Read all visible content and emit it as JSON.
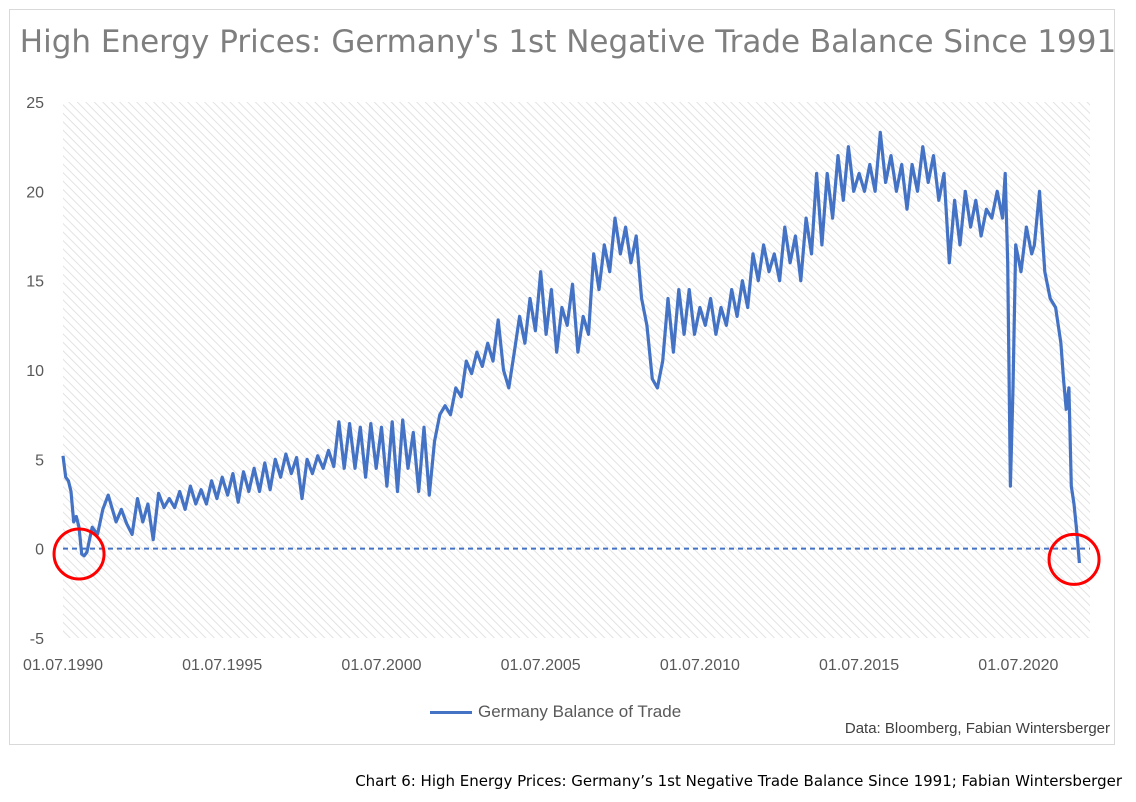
{
  "chart_data": {
    "type": "line",
    "title": "High Energy Prices: Germany's 1st Negative Trade Balance Since 1991",
    "xlabel": "",
    "ylabel": "",
    "xlim": [
      "1990-07-01",
      "2022-10-01"
    ],
    "ylim": [
      -5,
      25
    ],
    "y_ticks": [
      "25",
      "20",
      "15",
      "10",
      "5",
      "0",
      "-5"
    ],
    "x_tick_labels": [
      "01.07.1990",
      "01.07.1995",
      "01.07.2000",
      "01.07.2005",
      "01.07.2010",
      "01.07.2015",
      "01.07.2020"
    ],
    "grid": "hatched background",
    "legend_position": "bottom",
    "reference_line": {
      "y": 0,
      "style": "dashed"
    },
    "highlight_circles": [
      {
        "x": "1991-01-01",
        "y": -0.3
      },
      {
        "x": "2022-04-01",
        "y": -0.6
      }
    ],
    "series": [
      {
        "name": "Germany Balance of Trade",
        "color": "#4472c4",
        "points": [
          [
            "1990-07-01",
            5.2
          ],
          [
            "1990-08-01",
            4.0
          ],
          [
            "1990-09-01",
            3.8
          ],
          [
            "1990-10-01",
            3.2
          ],
          [
            "1990-11-01",
            1.5
          ],
          [
            "1990-12-01",
            1.8
          ],
          [
            "1991-01-01",
            1.2
          ],
          [
            "1991-02-01",
            -0.3
          ],
          [
            "1991-03-01",
            -0.4
          ],
          [
            "1991-04-01",
            -0.2
          ],
          [
            "1991-05-01",
            0.5
          ],
          [
            "1991-06-01",
            1.2
          ],
          [
            "1991-08-01",
            0.8
          ],
          [
            "1991-10-01",
            2.2
          ],
          [
            "1991-12-01",
            3.0
          ],
          [
            "1992-03-01",
            1.5
          ],
          [
            "1992-05-01",
            2.2
          ],
          [
            "1992-07-01",
            1.4
          ],
          [
            "1992-09-01",
            0.8
          ],
          [
            "1992-11-01",
            2.8
          ],
          [
            "1993-01-01",
            1.5
          ],
          [
            "1993-03-01",
            2.5
          ],
          [
            "1993-05-01",
            0.5
          ],
          [
            "1993-07-01",
            3.1
          ],
          [
            "1993-09-01",
            2.3
          ],
          [
            "1993-11-01",
            2.8
          ],
          [
            "1994-01-01",
            2.3
          ],
          [
            "1994-03-01",
            3.2
          ],
          [
            "1994-05-01",
            2.2
          ],
          [
            "1994-07-01",
            3.5
          ],
          [
            "1994-09-01",
            2.5
          ],
          [
            "1994-11-01",
            3.3
          ],
          [
            "1995-01-01",
            2.5
          ],
          [
            "1995-03-01",
            3.8
          ],
          [
            "1995-05-01",
            2.8
          ],
          [
            "1995-07-01",
            4.0
          ],
          [
            "1995-09-01",
            3.0
          ],
          [
            "1995-11-01",
            4.2
          ],
          [
            "1996-01-01",
            2.6
          ],
          [
            "1996-03-01",
            4.3
          ],
          [
            "1996-05-01",
            3.2
          ],
          [
            "1996-07-01",
            4.5
          ],
          [
            "1996-09-01",
            3.2
          ],
          [
            "1996-11-01",
            4.8
          ],
          [
            "1997-01-01",
            3.3
          ],
          [
            "1997-03-01",
            5.0
          ],
          [
            "1997-05-01",
            4.0
          ],
          [
            "1997-07-01",
            5.3
          ],
          [
            "1997-09-01",
            4.2
          ],
          [
            "1997-11-01",
            5.1
          ],
          [
            "1998-01-01",
            2.8
          ],
          [
            "1998-03-01",
            5.0
          ],
          [
            "1998-05-01",
            4.2
          ],
          [
            "1998-07-01",
            5.2
          ],
          [
            "1998-09-01",
            4.5
          ],
          [
            "1998-11-01",
            5.5
          ],
          [
            "1999-01-01",
            4.6
          ],
          [
            "1999-03-01",
            7.1
          ],
          [
            "1999-05-01",
            4.5
          ],
          [
            "1999-07-01",
            7.0
          ],
          [
            "1999-09-01",
            4.5
          ],
          [
            "1999-11-01",
            6.8
          ],
          [
            "2000-01-01",
            4.0
          ],
          [
            "2000-03-01",
            7.0
          ],
          [
            "2000-05-01",
            4.5
          ],
          [
            "2000-07-01",
            6.8
          ],
          [
            "2000-09-01",
            3.5
          ],
          [
            "2000-11-01",
            7.1
          ],
          [
            "2001-01-01",
            3.2
          ],
          [
            "2001-03-01",
            7.2
          ],
          [
            "2001-05-01",
            4.5
          ],
          [
            "2001-07-01",
            6.5
          ],
          [
            "2001-09-01",
            3.2
          ],
          [
            "2001-11-01",
            6.8
          ],
          [
            "2002-01-01",
            3.0
          ],
          [
            "2002-03-01",
            6.0
          ],
          [
            "2002-05-01",
            7.5
          ],
          [
            "2002-07-01",
            8.0
          ],
          [
            "2002-09-01",
            7.5
          ],
          [
            "2002-11-01",
            9.0
          ],
          [
            "2003-01-01",
            8.5
          ],
          [
            "2003-03-01",
            10.5
          ],
          [
            "2003-05-01",
            9.8
          ],
          [
            "2003-07-01",
            11.0
          ],
          [
            "2003-09-01",
            10.2
          ],
          [
            "2003-11-01",
            11.5
          ],
          [
            "2004-01-01",
            10.5
          ],
          [
            "2004-03-01",
            12.8
          ],
          [
            "2004-05-01",
            10.0
          ],
          [
            "2004-07-01",
            9.0
          ],
          [
            "2004-09-01",
            11.0
          ],
          [
            "2004-11-01",
            13.0
          ],
          [
            "2005-01-01",
            11.5
          ],
          [
            "2005-03-01",
            14.0
          ],
          [
            "2005-05-01",
            12.2
          ],
          [
            "2005-07-01",
            15.5
          ],
          [
            "2005-09-01",
            12.0
          ],
          [
            "2005-11-01",
            14.5
          ],
          [
            "2006-01-01",
            11.0
          ],
          [
            "2006-03-01",
            13.5
          ],
          [
            "2006-05-01",
            12.5
          ],
          [
            "2006-07-01",
            14.8
          ],
          [
            "2006-09-01",
            11.0
          ],
          [
            "2006-11-01",
            13.0
          ],
          [
            "2007-01-01",
            12.0
          ],
          [
            "2007-03-01",
            16.5
          ],
          [
            "2007-05-01",
            14.5
          ],
          [
            "2007-07-01",
            17.0
          ],
          [
            "2007-09-01",
            15.5
          ],
          [
            "2007-11-01",
            18.5
          ],
          [
            "2008-01-01",
            16.5
          ],
          [
            "2008-03-01",
            18.0
          ],
          [
            "2008-05-01",
            16.0
          ],
          [
            "2008-07-01",
            17.5
          ],
          [
            "2008-09-01",
            14.0
          ],
          [
            "2008-11-01",
            12.5
          ],
          [
            "2009-01-01",
            9.5
          ],
          [
            "2009-03-01",
            9.0
          ],
          [
            "2009-05-01",
            10.5
          ],
          [
            "2009-07-01",
            14.0
          ],
          [
            "2009-09-01",
            11.0
          ],
          [
            "2009-11-01",
            14.5
          ],
          [
            "2010-01-01",
            12.0
          ],
          [
            "2010-03-01",
            14.5
          ],
          [
            "2010-05-01",
            12.0
          ],
          [
            "2010-07-01",
            13.5
          ],
          [
            "2010-09-01",
            12.5
          ],
          [
            "2010-11-01",
            14.0
          ],
          [
            "2011-01-01",
            12.0
          ],
          [
            "2011-03-01",
            13.5
          ],
          [
            "2011-05-01",
            12.5
          ],
          [
            "2011-07-01",
            14.5
          ],
          [
            "2011-09-01",
            13.0
          ],
          [
            "2011-11-01",
            15.0
          ],
          [
            "2012-01-01",
            13.5
          ],
          [
            "2012-03-01",
            16.5
          ],
          [
            "2012-05-01",
            15.0
          ],
          [
            "2012-07-01",
            17.0
          ],
          [
            "2012-09-01",
            15.5
          ],
          [
            "2012-11-01",
            16.5
          ],
          [
            "2013-01-01",
            15.0
          ],
          [
            "2013-03-01",
            18.0
          ],
          [
            "2013-05-01",
            16.0
          ],
          [
            "2013-07-01",
            17.5
          ],
          [
            "2013-09-01",
            15.0
          ],
          [
            "2013-11-01",
            18.5
          ],
          [
            "2014-01-01",
            16.5
          ],
          [
            "2014-03-01",
            21.0
          ],
          [
            "2014-05-01",
            17.0
          ],
          [
            "2014-07-01",
            21.0
          ],
          [
            "2014-09-01",
            18.5
          ],
          [
            "2014-11-01",
            22.0
          ],
          [
            "2015-01-01",
            19.5
          ],
          [
            "2015-03-01",
            22.5
          ],
          [
            "2015-05-01",
            20.0
          ],
          [
            "2015-07-01",
            21.0
          ],
          [
            "2015-09-01",
            20.0
          ],
          [
            "2015-11-01",
            21.5
          ],
          [
            "2016-01-01",
            20.0
          ],
          [
            "2016-03-01",
            23.3
          ],
          [
            "2016-05-01",
            20.5
          ],
          [
            "2016-07-01",
            22.0
          ],
          [
            "2016-09-01",
            20.0
          ],
          [
            "2016-11-01",
            21.5
          ],
          [
            "2017-01-01",
            19.0
          ],
          [
            "2017-03-01",
            21.5
          ],
          [
            "2017-05-01",
            20.0
          ],
          [
            "2017-07-01",
            22.5
          ],
          [
            "2017-09-01",
            20.5
          ],
          [
            "2017-11-01",
            22.0
          ],
          [
            "2018-01-01",
            19.5
          ],
          [
            "2018-03-01",
            21.0
          ],
          [
            "2018-05-01",
            16.0
          ],
          [
            "2018-07-01",
            19.5
          ],
          [
            "2018-09-01",
            17.0
          ],
          [
            "2018-11-01",
            20.0
          ],
          [
            "2019-01-01",
            18.0
          ],
          [
            "2019-03-01",
            19.5
          ],
          [
            "2019-05-01",
            17.5
          ],
          [
            "2019-07-01",
            19.0
          ],
          [
            "2019-09-01",
            18.5
          ],
          [
            "2019-11-01",
            20.0
          ],
          [
            "2020-01-01",
            18.5
          ],
          [
            "2020-02-01",
            21.0
          ],
          [
            "2020-03-01",
            16.0
          ],
          [
            "2020-04-01",
            3.5
          ],
          [
            "2020-05-01",
            9.0
          ],
          [
            "2020-06-01",
            17.0
          ],
          [
            "2020-08-01",
            15.5
          ],
          [
            "2020-10-01",
            18.0
          ],
          [
            "2020-12-01",
            16.5
          ],
          [
            "2021-01-01",
            17.0
          ],
          [
            "2021-03-01",
            20.0
          ],
          [
            "2021-05-01",
            15.5
          ],
          [
            "2021-07-01",
            14.0
          ],
          [
            "2021-09-01",
            13.5
          ],
          [
            "2021-11-01",
            11.5
          ],
          [
            "2021-12-01",
            9.5
          ],
          [
            "2022-01-01",
            7.8
          ],
          [
            "2022-02-01",
            9.0
          ],
          [
            "2022-03-01",
            3.5
          ],
          [
            "2022-04-01",
            2.5
          ],
          [
            "2022-05-01",
            1.0
          ],
          [
            "2022-06-01",
            -0.8
          ]
        ]
      }
    ]
  },
  "legend": {
    "label": "Germany Balance of Trade"
  },
  "source_note": "Data: Bloomberg, Fabian Wintersberger",
  "caption": "Chart 6: High Energy Prices: Germany’s 1st Negative Trade Balance Since 1991; Fabian Wintersberger"
}
